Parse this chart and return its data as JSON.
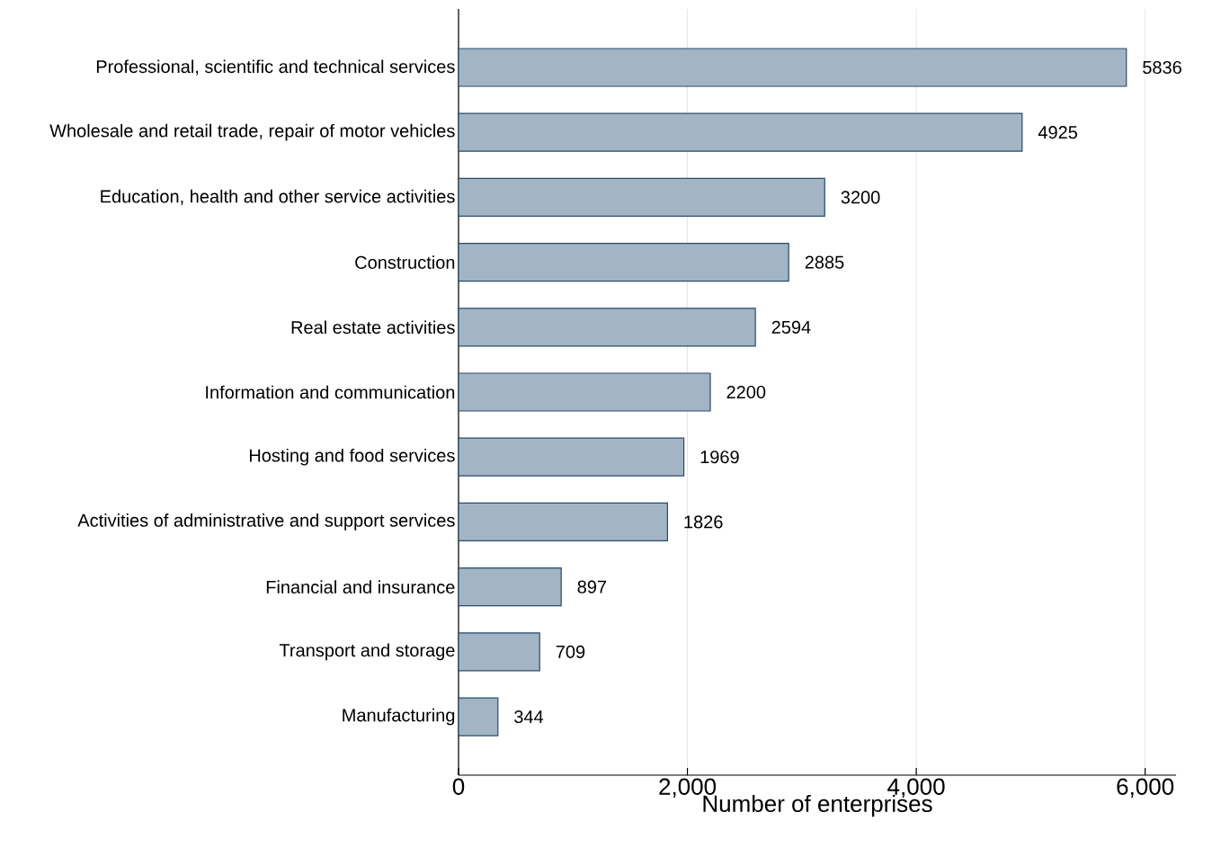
{
  "chart_data": {
    "type": "bar",
    "orientation": "horizontal",
    "categories": [
      "Professional, scientific and technical services",
      "Wholesale and retail trade, repair of motor vehicles",
      "Education, health and other service activities",
      "Construction",
      "Real estate activities",
      "Information and communication",
      "Hosting and food services",
      "Activities of administrative and support services",
      "Financial and insurance",
      "Transport and storage",
      "Manufacturing"
    ],
    "values": [
      5836,
      4925,
      3200,
      2885,
      2594,
      2200,
      1969,
      1826,
      897,
      709,
      344
    ],
    "color": "#a3b4c4",
    "xlabel": "Number of enterprises",
    "xlim": [
      0,
      6270
    ],
    "xticks": [
      0,
      {
        "value": 2000,
        "label": "2,000"
      },
      {
        "value": 4000,
        "label": "4,000"
      },
      {
        "value": 6000,
        "label": "6,000"
      }
    ],
    "grid": "x",
    "data_labels": true
  }
}
